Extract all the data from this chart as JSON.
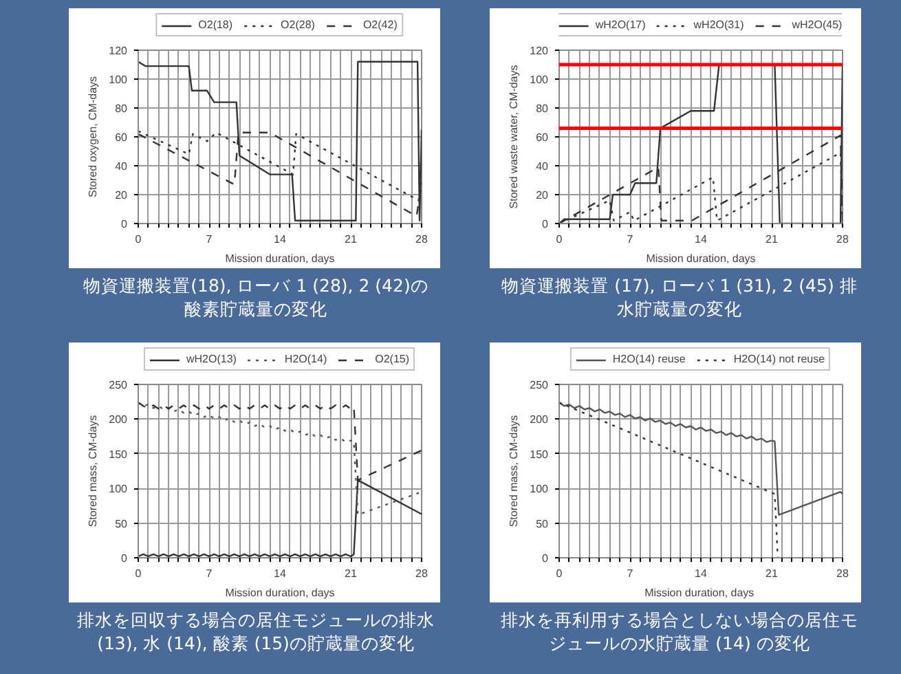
{
  "chart_data": [
    {
      "type": "line",
      "xlabel": "Mission duration, days",
      "ylabel": "Stored oxygen, CM-days",
      "xlim": [
        0,
        28
      ],
      "ylim": [
        0,
        120
      ],
      "xticks": [
        0,
        {
          "value": 1,
          "label": null
        },
        {
          "value": 2,
          "label": null
        },
        {
          "value": 3,
          "label": null
        },
        {
          "value": 4,
          "label": null
        },
        {
          "value": 5,
          "label": null
        },
        {
          "value": 6,
          "label": null
        },
        7,
        {
          "value": 8,
          "label": null
        },
        {
          "value": 9,
          "label": null
        },
        {
          "value": 10,
          "label": null
        },
        {
          "value": 11,
          "label": null
        },
        {
          "value": 12,
          "label": null
        },
        {
          "value": 13,
          "label": null
        },
        14,
        {
          "value": 15,
          "label": null
        },
        {
          "value": 16,
          "label": null
        },
        {
          "value": 17,
          "label": null
        },
        {
          "value": 18,
          "label": null
        },
        {
          "value": 19,
          "label": null
        },
        {
          "value": 20,
          "label": null
        },
        21,
        {
          "value": 22,
          "label": null
        },
        {
          "value": 23,
          "label": null
        },
        {
          "value": 24,
          "label": null
        },
        {
          "value": 25,
          "label": null
        },
        {
          "value": 26,
          "label": null
        },
        {
          "value": 27,
          "label": null
        },
        28
      ],
      "yticks": [
        0,
        20,
        40,
        60,
        80,
        100,
        120
      ],
      "grid": true,
      "legend": "top",
      "series": [
        {
          "name": "O2(18)",
          "color": "#333333",
          "line_style": "solid",
          "x": [
            0,
            0.7,
            5,
            5.3,
            6.8,
            7.5,
            9.7,
            10,
            13,
            15.2,
            15.5,
            21.5,
            21.7,
            27.6,
            27.8,
            28
          ],
          "values": [
            112,
            109,
            109,
            92,
            92,
            84,
            84,
            47,
            34,
            34,
            2,
            2,
            112,
            112,
            2,
            65
          ]
        },
        {
          "name": "O2(28)",
          "color": "#333333",
          "line_style": "dotted",
          "x": [
            0,
            5,
            5.4,
            6.8,
            7.7,
            15.3,
            15.6,
            27.7,
            28
          ],
          "values": [
            64,
            48,
            62,
            57,
            63,
            34,
            62,
            16,
            30
          ]
        },
        {
          "name": "O2(42)",
          "color": "#333333",
          "line_style": "dashed",
          "x": [
            0,
            9.5,
            9.9,
            13,
            27.5,
            28
          ],
          "values": [
            62,
            27,
            63,
            63,
            5,
            28
          ]
        }
      ],
      "annotations": [
        "物資運搬装置(18), ローバ 1 (28), 2 (42)の酸素貯蔵量の変化"
      ]
    },
    {
      "type": "line",
      "xlabel": "Mission duration, days",
      "ylabel": "Stored waste water, CM-days",
      "xlim": [
        0,
        28
      ],
      "ylim": [
        0,
        120
      ],
      "xticks": [
        0,
        {
          "value": 1,
          "label": null
        },
        {
          "value": 2,
          "label": null
        },
        {
          "value": 3,
          "label": null
        },
        {
          "value": 4,
          "label": null
        },
        {
          "value": 5,
          "label": null
        },
        {
          "value": 6,
          "label": null
        },
        7,
        {
          "value": 8,
          "label": null
        },
        {
          "value": 9,
          "label": null
        },
        {
          "value": 10,
          "label": null
        },
        {
          "value": 11,
          "label": null
        },
        {
          "value": 12,
          "label": null
        },
        {
          "value": 13,
          "label": null
        },
        14,
        {
          "value": 15,
          "label": null
        },
        {
          "value": 16,
          "label": null
        },
        {
          "value": 17,
          "label": null
        },
        {
          "value": 18,
          "label": null
        },
        {
          "value": 19,
          "label": null
        },
        {
          "value": 20,
          "label": null
        },
        21,
        {
          "value": 22,
          "label": null
        },
        {
          "value": 23,
          "label": null
        },
        {
          "value": 24,
          "label": null
        },
        {
          "value": 25,
          "label": null
        },
        {
          "value": 26,
          "label": null
        },
        {
          "value": 27,
          "label": null
        },
        28
      ],
      "yticks": [
        0,
        20,
        40,
        60,
        80,
        100,
        120
      ],
      "grid": true,
      "legend": "top",
      "series": [
        {
          "name": "wH2O(17)",
          "color": "#333333",
          "line_style": "solid",
          "x": [
            0,
            0.5,
            5,
            5.3,
            7,
            7.5,
            9.6,
            10,
            13,
            15.3,
            15.8,
            21.3,
            21.8,
            27.8,
            28
          ],
          "values": [
            0,
            3,
            3,
            20,
            20,
            28,
            28,
            66,
            78,
            78,
            110,
            110,
            0,
            0,
            110
          ]
        },
        {
          "name": "wH2O(31)",
          "color": "#333333",
          "line_style": "dotted",
          "x": [
            0,
            5,
            5.4,
            7,
            7.4,
            15.2,
            15.6,
            27.8,
            28
          ],
          "values": [
            0,
            16,
            2,
            8,
            2,
            32,
            2,
            49,
            0
          ]
        },
        {
          "name": "wH2O(45)",
          "color": "#333333",
          "line_style": "dashed",
          "x": [
            0,
            9.8,
            10.1,
            13.1,
            27.8,
            28
          ],
          "values": [
            0,
            39,
            2,
            2,
            61,
            0
          ]
        }
      ],
      "ref_lines": [
        {
          "axis": "y",
          "value": 110,
          "color": "#ff0000"
        },
        {
          "axis": "y",
          "value": 66,
          "color": "#ff0000"
        }
      ],
      "annotations": [
        "物資運搬装置 (17), ローバ 1 (31), 2 (45)  排水貯蔵量の変化"
      ]
    },
    {
      "type": "line",
      "xlabel": "Mission duration, days",
      "ylabel": "Stored mass, CM-days",
      "xlim": [
        0,
        28
      ],
      "ylim": [
        0,
        250
      ],
      "xticks": [
        0,
        {
          "value": 1,
          "label": null
        },
        {
          "value": 2,
          "label": null
        },
        {
          "value": 3,
          "label": null
        },
        {
          "value": 4,
          "label": null
        },
        {
          "value": 5,
          "label": null
        },
        {
          "value": 6,
          "label": null
        },
        7,
        {
          "value": 8,
          "label": null
        },
        {
          "value": 9,
          "label": null
        },
        {
          "value": 10,
          "label": null
        },
        {
          "value": 11,
          "label": null
        },
        {
          "value": 12,
          "label": null
        },
        {
          "value": 13,
          "label": null
        },
        14,
        {
          "value": 15,
          "label": null
        },
        {
          "value": 16,
          "label": null
        },
        {
          "value": 17,
          "label": null
        },
        {
          "value": 18,
          "label": null
        },
        {
          "value": 19,
          "label": null
        },
        {
          "value": 20,
          "label": null
        },
        21,
        {
          "value": 22,
          "label": null
        },
        {
          "value": 23,
          "label": null
        },
        {
          "value": 24,
          "label": null
        },
        {
          "value": 25,
          "label": null
        },
        {
          "value": 26,
          "label": null
        },
        {
          "value": 27,
          "label": null
        },
        28
      ],
      "yticks": [
        0,
        50,
        100,
        150,
        200,
        250
      ],
      "grid": true,
      "legend": "top",
      "series": [
        {
          "name": "wH2O(13)",
          "color": "#333333",
          "line_style": "solid",
          "x": [
            0,
            0.5,
            1,
            1.5,
            2,
            2.5,
            3,
            3.5,
            4,
            4.5,
            5,
            5.5,
            6,
            6.5,
            7,
            7.5,
            8,
            8.5,
            9,
            9.5,
            10,
            10.5,
            11,
            11.5,
            12,
            12.5,
            13,
            13.5,
            14,
            14.5,
            15,
            15.5,
            16,
            16.5,
            17,
            17.5,
            18,
            18.5,
            19,
            19.5,
            20,
            20.5,
            21,
            21.3,
            21.7,
            28
          ],
          "values": [
            2,
            5,
            2,
            5,
            2,
            5,
            2,
            5,
            2,
            5,
            2,
            5,
            2,
            5,
            2,
            5,
            2,
            5,
            2,
            5,
            2,
            5,
            2,
            5,
            2,
            5,
            2,
            5,
            2,
            5,
            2,
            5,
            2,
            5,
            2,
            5,
            2,
            5,
            2,
            5,
            2,
            5,
            2,
            5,
            112,
            63
          ]
        },
        {
          "name": "H2O(14)",
          "color": "#555555",
          "line_style": "dotted",
          "x": [
            0,
            0.5,
            1,
            1.5,
            2,
            2.5,
            3,
            3.5,
            4,
            4.5,
            5,
            5.5,
            6,
            6.5,
            7,
            7.5,
            8,
            8.5,
            9,
            9.5,
            10,
            10.5,
            11,
            11.5,
            12,
            12.5,
            13,
            13.5,
            14,
            14.5,
            15,
            15.5,
            16,
            16.5,
            17,
            17.5,
            18,
            18.5,
            19,
            19.5,
            20,
            20.5,
            21,
            21.3,
            21.7,
            28
          ],
          "values": [
            224,
            219,
            221,
            216,
            219,
            214,
            216,
            211,
            214,
            209,
            211,
            206,
            208,
            203,
            206,
            201,
            203,
            198,
            201,
            196,
            198,
            193,
            195,
            190,
            193,
            188,
            190,
            185,
            188,
            183,
            185,
            180,
            182,
            177,
            180,
            175,
            177,
            172,
            175,
            170,
            172,
            167,
            169,
            168,
            62,
            95
          ]
        },
        {
          "name": "O2(15)",
          "color": "#333333",
          "line_style": "dashed",
          "x": [
            0,
            0.5,
            1,
            1.5,
            2,
            2.5,
            3,
            3.5,
            4,
            4.5,
            5,
            5.5,
            6,
            6.5,
            7,
            7.5,
            8,
            8.5,
            9,
            9.5,
            10,
            10.5,
            11,
            11.5,
            12,
            12.5,
            13,
            13.5,
            14,
            14.5,
            15,
            15.5,
            16,
            16.5,
            17,
            17.5,
            18,
            18.5,
            19,
            19.5,
            20,
            20.5,
            21,
            21.3,
            21.7,
            28
          ],
          "values": [
            224,
            219,
            215,
            220,
            215,
            220,
            215,
            220,
            215,
            220,
            215,
            220,
            215,
            220,
            215,
            220,
            215,
            220,
            215,
            220,
            215,
            220,
            215,
            220,
            215,
            220,
            215,
            220,
            215,
            220,
            215,
            220,
            215,
            220,
            215,
            220,
            215,
            220,
            215,
            220,
            215,
            220,
            215,
            218,
            112,
            155
          ]
        }
      ],
      "annotations": [
        "排水を回収する場合の居住モジュールの排水 (13), 水 (14), 酸素 (15)の貯蔵量の変化"
      ]
    },
    {
      "type": "line",
      "xlabel": "Mission duration,  days",
      "ylabel": "Stored mass, CM-days",
      "xlim": [
        0,
        28
      ],
      "ylim": [
        0,
        250
      ],
      "xticks": [
        0,
        {
          "value": 1,
          "label": null
        },
        {
          "value": 2,
          "label": null
        },
        {
          "value": 3,
          "label": null
        },
        {
          "value": 4,
          "label": null
        },
        {
          "value": 5,
          "label": null
        },
        {
          "value": 6,
          "label": null
        },
        7,
        {
          "value": 8,
          "label": null
        },
        {
          "value": 9,
          "label": null
        },
        {
          "value": 10,
          "label": null
        },
        {
          "value": 11,
          "label": null
        },
        {
          "value": 12,
          "label": null
        },
        {
          "value": 13,
          "label": null
        },
        14,
        {
          "value": 15,
          "label": null
        },
        {
          "value": 16,
          "label": null
        },
        {
          "value": 17,
          "label": null
        },
        {
          "value": 18,
          "label": null
        },
        {
          "value": 19,
          "label": null
        },
        {
          "value": 20,
          "label": null
        },
        21,
        {
          "value": 22,
          "label": null
        },
        {
          "value": 23,
          "label": null
        },
        {
          "value": 24,
          "label": null
        },
        {
          "value": 25,
          "label": null
        },
        {
          "value": 26,
          "label": null
        },
        {
          "value": 27,
          "label": null
        },
        28
      ],
      "yticks": [
        0,
        50,
        100,
        150,
        200,
        250
      ],
      "grid": true,
      "legend": "top",
      "series": [
        {
          "name": "H2O(14) reuse",
          "color": "#555555",
          "line_style": "solid",
          "x": [
            0,
            0.5,
            1,
            1.5,
            2,
            2.5,
            3,
            3.5,
            4,
            4.5,
            5,
            5.5,
            6,
            6.5,
            7,
            7.5,
            8,
            8.5,
            9,
            9.5,
            10,
            10.5,
            11,
            11.5,
            12,
            12.5,
            13,
            13.5,
            14,
            14.5,
            15,
            15.5,
            16,
            16.5,
            17,
            17.5,
            18,
            18.5,
            19,
            19.5,
            20,
            20.5,
            21,
            21.3,
            21.7,
            27.8,
            28
          ],
          "values": [
            224,
            219,
            221,
            216,
            219,
            214,
            216,
            211,
            214,
            209,
            211,
            206,
            208,
            203,
            206,
            201,
            203,
            198,
            201,
            196,
            198,
            193,
            195,
            190,
            193,
            188,
            190,
            185,
            188,
            183,
            185,
            180,
            182,
            177,
            180,
            175,
            177,
            172,
            175,
            170,
            172,
            167,
            169,
            168,
            62,
            95,
            92
          ]
        },
        {
          "name": "H2O(14) not reuse",
          "color": "#333333",
          "line_style": "dotted",
          "x": [
            0,
            21.3,
            21.6
          ],
          "values": [
            224,
            92,
            0
          ]
        }
      ],
      "annotations": [
        "排水を再利用する場合としない場合の居住モジュールの水貯蔵量 (14) の変化"
      ]
    }
  ]
}
